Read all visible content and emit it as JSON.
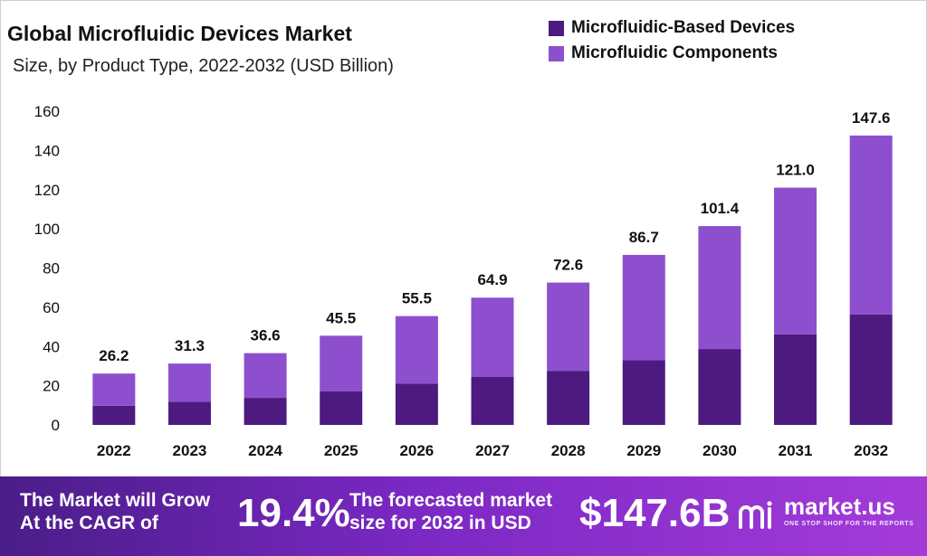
{
  "chart_data": {
    "type": "bar",
    "stacked": true,
    "title": "Global Microfluidic Devices Market",
    "subtitle": "Size, by Product Type, 2022-2032 (USD Billion)",
    "xlabel": "",
    "ylabel": "",
    "ylim": [
      0,
      160
    ],
    "yticks": [
      0,
      20,
      40,
      60,
      80,
      100,
      120,
      140,
      160
    ],
    "legend_position": "top-right",
    "grid": false,
    "categories": [
      "2022",
      "2023",
      "2024",
      "2025",
      "2026",
      "2027",
      "2028",
      "2029",
      "2030",
      "2031",
      "2032"
    ],
    "series": [
      {
        "name": "Microfluidic-Based Devices",
        "color": "#4d1a80",
        "values": [
          9.8,
          11.8,
          13.8,
          17.2,
          21.0,
          24.6,
          27.6,
          33.0,
          38.7,
          46.2,
          56.4
        ]
      },
      {
        "name": "Microfluidic Components",
        "color": "#8e4fcf",
        "values": [
          16.4,
          19.5,
          22.8,
          28.3,
          34.5,
          40.3,
          45.0,
          53.7,
          62.7,
          74.8,
          91.2
        ]
      }
    ],
    "totals": [
      26.2,
      31.3,
      36.6,
      45.5,
      55.5,
      64.9,
      72.6,
      86.7,
      101.4,
      121.0,
      147.6
    ],
    "total_labels": [
      "26.2",
      "31.3",
      "36.6",
      "45.5",
      "55.5",
      "64.9",
      "72.6",
      "86.7",
      "101.4",
      "121.0",
      "147.6"
    ]
  },
  "footer": {
    "cagr_line1": "The Market will Grow",
    "cagr_line2": "At the CAGR of",
    "cagr_value": "19.4%",
    "forecast_line1": "The forecasted market",
    "forecast_line2": "size for 2032 in USD",
    "forecast_value": "$147.6B",
    "brand_name": "market.us",
    "brand_tagline": "ONE STOP SHOP FOR THE REPORTS"
  }
}
